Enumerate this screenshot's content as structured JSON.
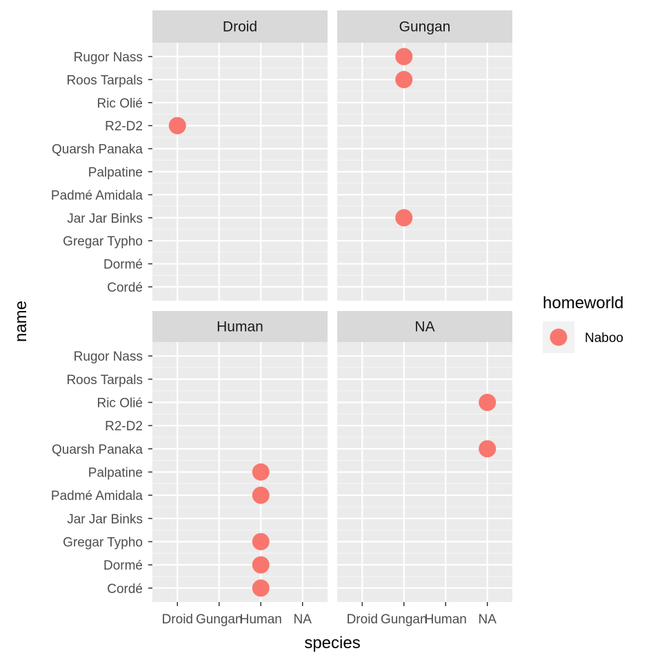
{
  "chart_data": {
    "type": "scatter",
    "facet_var": "species",
    "facets": [
      "Droid",
      "Gungan",
      "Human",
      "NA"
    ],
    "x_categories": [
      "Droid",
      "Gungan",
      "Human",
      "NA"
    ],
    "y_categories": [
      "Cordé",
      "Dormé",
      "Gregar Typho",
      "Jar Jar Binks",
      "Padmé Amidala",
      "Palpatine",
      "Quarsh Panaka",
      "R2-D2",
      "Ric Olié",
      "Roos Tarpals",
      "Rugor Nass"
    ],
    "xlabel": "species",
    "ylabel": "name",
    "legend": {
      "title": "homeworld",
      "entries": [
        {
          "label": "Naboo",
          "color": "#F8766D"
        }
      ],
      "placement": "right"
    },
    "series": [
      {
        "name": "Naboo",
        "color": "#F8766D",
        "points": [
          {
            "facet": "Droid",
            "x": "Droid",
            "y": "R2-D2"
          },
          {
            "facet": "Gungan",
            "x": "Gungan",
            "y": "Rugor Nass"
          },
          {
            "facet": "Gungan",
            "x": "Gungan",
            "y": "Roos Tarpals"
          },
          {
            "facet": "Gungan",
            "x": "Gungan",
            "y": "Jar Jar Binks"
          },
          {
            "facet": "Human",
            "x": "Human",
            "y": "Palpatine"
          },
          {
            "facet": "Human",
            "x": "Human",
            "y": "Padmé Amidala"
          },
          {
            "facet": "Human",
            "x": "Human",
            "y": "Gregar Typho"
          },
          {
            "facet": "Human",
            "x": "Human",
            "y": "Dormé"
          },
          {
            "facet": "Human",
            "x": "Human",
            "y": "Cordé"
          },
          {
            "facet": "NA",
            "x": "NA",
            "y": "Ric Olié"
          },
          {
            "facet": "NA",
            "x": "NA",
            "y": "Quarsh Panaka"
          }
        ]
      }
    ],
    "grid": true,
    "panel_background": "#EBEBEB",
    "strip_background": "#D9D9D9"
  }
}
